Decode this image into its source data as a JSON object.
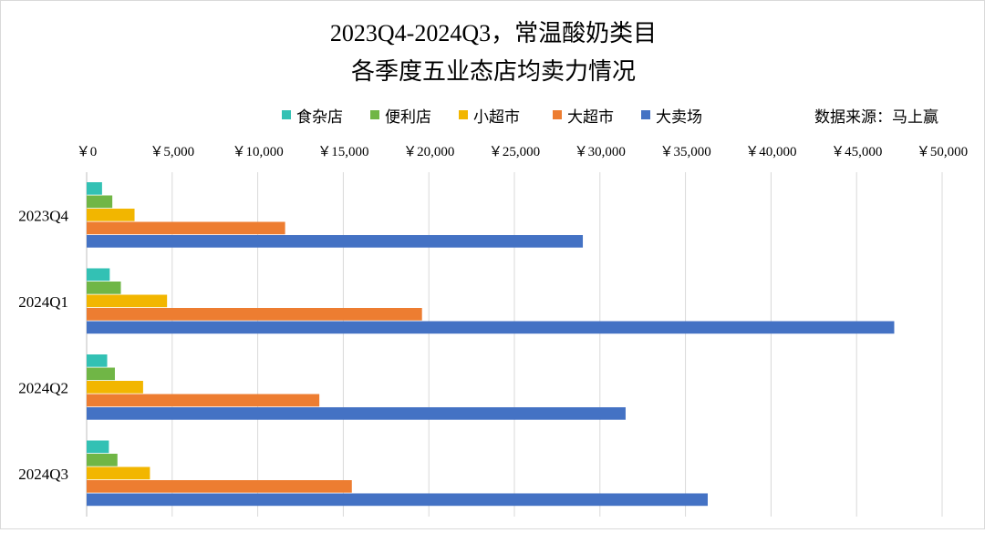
{
  "chart_data": {
    "type": "bar",
    "orientation": "horizontal",
    "title": [
      "2023Q4-2024Q3，常温酸奶类目",
      "各季度五业态店均卖力情况"
    ],
    "source_note": "数据来源：马上赢",
    "categories": [
      "2023Q4",
      "2024Q1",
      "2024Q2",
      "2024Q3"
    ],
    "series": [
      {
        "name": "食杂店",
        "color": "#33c1b4",
        "values": [
          900,
          1350,
          1200,
          1300
        ]
      },
      {
        "name": "便利店",
        "color": "#70b646",
        "values": [
          1500,
          2000,
          1650,
          1800
        ]
      },
      {
        "name": "小超市",
        "color": "#f2b600",
        "values": [
          2800,
          4700,
          3300,
          3700
        ]
      },
      {
        "name": "大超市",
        "color": "#ed7d31",
        "values": [
          11600,
          19600,
          13600,
          15500
        ]
      },
      {
        "name": "大卖场",
        "color": "#4472c4",
        "values": [
          29000,
          47200,
          31500,
          36300
        ]
      }
    ],
    "xlim": [
      0,
      50000
    ],
    "x_ticks": [
      0,
      5000,
      10000,
      15000,
      20000,
      25000,
      30000,
      35000,
      40000,
      45000,
      50000
    ],
    "x_tick_labels": [
      "￥0",
      "￥5,000",
      "￥10,000",
      "￥15,000",
      "￥20,000",
      "￥25,000",
      "￥30,000",
      "￥35,000",
      "￥40,000",
      "￥45,000",
      "￥50,000"
    ],
    "grid": true,
    "legend_position": "top"
  }
}
